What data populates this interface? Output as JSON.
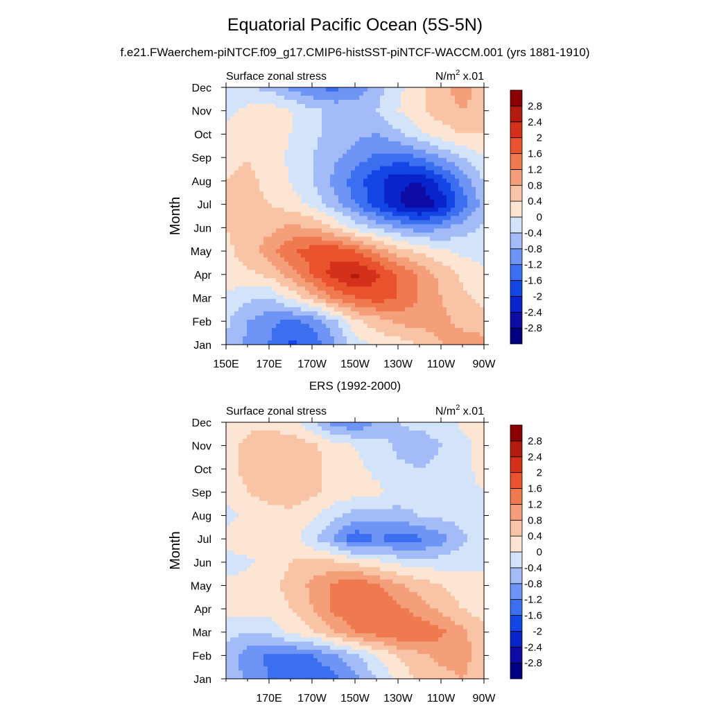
{
  "title": "Equatorial Pacific Ocean (5S-5N)",
  "subtitle": "f.e21.FWaerchem-piNTCF.f09_g17.CMIP6-histSST-piNTCF-WACCM.001 (yrs 1881-1910)",
  "colors": {
    "levels": [
      "#000080",
      "#0d0da6",
      "#0a24cc",
      "#1446e6",
      "#3c6ef0",
      "#6e95f5",
      "#a3bbf7",
      "#d3e3fa",
      "#fde5d3",
      "#f9c3a6",
      "#f59f7a",
      "#f07a50",
      "#e8522c",
      "#d5301a",
      "#b31c0d",
      "#8b0000"
    ]
  },
  "chart_data": [
    {
      "type": "heatmap",
      "name": "model",
      "panel_title": "",
      "left_label": "Surface zonal stress",
      "right_label_base": "N/m",
      "right_label_sup": "2",
      "right_label_suffix": " x.01",
      "ylabel": "Month",
      "xticks": [
        150,
        170,
        190,
        210,
        230,
        250,
        270
      ],
      "xticklabels": [
        "150E",
        "170E",
        "170W",
        "150W",
        "130W",
        "110W",
        "90W"
      ],
      "yticklabels": [
        "Jan",
        "Feb",
        "Mar",
        "Apr",
        "May",
        "Jun",
        "Jul",
        "Aug",
        "Sep",
        "Oct",
        "Nov",
        "Dec"
      ],
      "xlim": [
        150,
        270
      ],
      "ylim": [
        0,
        11
      ],
      "levels": [
        -2.8,
        -2.4,
        -2,
        -1.6,
        -1.2,
        -0.8,
        -0.4,
        0,
        0.4,
        0.8,
        1.2,
        1.6,
        2,
        2.4,
        2.8
      ],
      "x": [
        150,
        160,
        170,
        180,
        190,
        200,
        210,
        220,
        230,
        240,
        250,
        260,
        270
      ],
      "months": [
        "Jan",
        "Feb",
        "Mar",
        "Apr",
        "May",
        "Jun",
        "Jul",
        "Aug",
        "Sep",
        "Oct",
        "Nov",
        "Dec"
      ],
      "values": [
        [
          -0.5,
          -0.9,
          -1.2,
          -1.7,
          -1.5,
          -0.9,
          -0.2,
          0.1,
          0.2,
          0.4,
          0.8,
          1.0,
          1.0
        ],
        [
          -0.3,
          -0.8,
          -1.1,
          -1.3,
          -1.1,
          -0.5,
          0.3,
          0.6,
          0.9,
          1.0,
          0.9,
          0.7,
          0.5
        ],
        [
          -0.1,
          -0.3,
          -0.4,
          0.1,
          0.6,
          1.2,
          1.6,
          1.8,
          1.6,
          1.2,
          0.8,
          0.5,
          0.3
        ],
        [
          0.3,
          0.3,
          0.5,
          1.0,
          1.6,
          2.2,
          2.5,
          2.1,
          1.6,
          1.1,
          0.7,
          0.3,
          0.1
        ],
        [
          0.3,
          0.6,
          1.0,
          1.5,
          1.8,
          1.9,
          1.6,
          1.1,
          0.6,
          0.3,
          0.1,
          -0.1,
          -0.2
        ],
        [
          0.4,
          0.6,
          0.7,
          0.9,
          0.8,
          0.4,
          -0.1,
          -0.5,
          -0.8,
          -1.0,
          -0.9,
          -0.6,
          -0.3
        ],
        [
          0.4,
          0.5,
          0.4,
          0.2,
          -0.1,
          -0.6,
          -1.2,
          -1.8,
          -2.4,
          -2.8,
          -2.3,
          -1.4,
          -0.6
        ],
        [
          0.4,
          0.5,
          0.3,
          0.0,
          -0.4,
          -0.9,
          -1.4,
          -1.9,
          -2.3,
          -2.4,
          -1.8,
          -1.1,
          -0.4
        ],
        [
          0.3,
          0.4,
          0.2,
          -0.1,
          -0.4,
          -0.7,
          -1.0,
          -1.3,
          -1.4,
          -1.2,
          -0.8,
          -0.4,
          0.0
        ],
        [
          0.1,
          0.3,
          0.3,
          0.0,
          -0.3,
          -0.5,
          -0.7,
          -0.8,
          -0.5,
          -0.1,
          0.2,
          0.4,
          0.4
        ],
        [
          -0.1,
          0.1,
          0.2,
          0.0,
          -0.3,
          -0.5,
          -0.6,
          -0.4,
          0.0,
          0.3,
          0.6,
          0.8,
          0.6
        ],
        [
          -0.4,
          -0.4,
          -0.5,
          -0.9,
          -1.2,
          -1.3,
          -1.1,
          -0.6,
          -0.1,
          0.3,
          0.7,
          1.0,
          0.6
        ]
      ]
    },
    {
      "type": "heatmap",
      "name": "obs",
      "panel_title": "ERS (1992-2000)",
      "left_label": "Surface zonal stress",
      "right_label_base": "N/m",
      "right_label_sup": "2",
      "right_label_suffix": " x.01",
      "ylabel": "Month",
      "xticks": [
        170,
        190,
        210,
        230,
        250,
        270
      ],
      "xticklabels": [
        "170E",
        "170W",
        "150W",
        "130W",
        "110W",
        "90W"
      ],
      "yticklabels": [
        "Jan",
        "Feb",
        "Mar",
        "Apr",
        "May",
        "Jun",
        "Jul",
        "Aug",
        "Sep",
        "Oct",
        "Nov",
        "Dec"
      ],
      "xlim": [
        150,
        270
      ],
      "ylim": [
        0,
        11
      ],
      "levels": [
        -2.8,
        -2.4,
        -2,
        -1.6,
        -1.2,
        -0.8,
        -0.4,
        0,
        0.4,
        0.8,
        1.2,
        1.6,
        2,
        2.4,
        2.8
      ],
      "x": [
        150,
        160,
        170,
        180,
        190,
        200,
        210,
        220,
        230,
        240,
        250,
        260,
        270
      ],
      "months": [
        "Jan",
        "Feb",
        "Mar",
        "Apr",
        "May",
        "Jun",
        "Jul",
        "Aug",
        "Sep",
        "Oct",
        "Nov",
        "Dec"
      ],
      "values": [
        [
          -0.5,
          -0.9,
          -1.2,
          -1.4,
          -1.6,
          -1.3,
          -0.9,
          -0.4,
          0.1,
          0.5,
          0.7,
          0.8,
          0.6
        ],
        [
          -0.6,
          -1.0,
          -1.3,
          -1.3,
          -1.2,
          -0.9,
          -0.5,
          0.0,
          0.4,
          0.7,
          0.9,
          0.9,
          0.7
        ],
        [
          -0.2,
          -0.4,
          -0.3,
          0.1,
          0.3,
          0.8,
          1.2,
          1.4,
          1.6,
          1.6,
          1.3,
          0.9,
          0.5
        ],
        [
          0.1,
          0.2,
          0.2,
          0.4,
          0.8,
          1.3,
          1.6,
          1.5,
          1.3,
          1.0,
          0.7,
          0.4,
          0.2
        ],
        [
          0.1,
          0.2,
          0.3,
          0.5,
          0.9,
          1.3,
          1.5,
          1.3,
          0.9,
          0.6,
          0.4,
          0.2,
          0.0
        ],
        [
          -0.2,
          -0.1,
          0.2,
          0.4,
          0.5,
          0.5,
          0.3,
          0.1,
          -0.1,
          -0.2,
          -0.2,
          -0.1,
          0.0
        ],
        [
          0.2,
          0.3,
          0.3,
          0.2,
          -0.3,
          -0.8,
          -1.5,
          -1.2,
          -1.4,
          -1.3,
          -1.0,
          -0.5,
          -0.2
        ],
        [
          -0.2,
          0.2,
          0.3,
          0.3,
          0.1,
          -0.3,
          -0.6,
          -0.6,
          -0.6,
          -0.4,
          -0.3,
          -0.2,
          -0.1
        ],
        [
          0.2,
          0.4,
          0.5,
          0.6,
          0.5,
          0.3,
          0.2,
          0.1,
          -0.1,
          -0.2,
          -0.2,
          -0.1,
          0.0
        ],
        [
          0.3,
          0.5,
          0.6,
          0.6,
          0.5,
          0.3,
          0.1,
          -0.1,
          -0.3,
          -0.4,
          -0.3,
          -0.1,
          0.1
        ],
        [
          0.3,
          0.5,
          0.6,
          0.7,
          0.5,
          0.2,
          0.0,
          -0.2,
          -0.5,
          -0.6,
          -0.4,
          -0.2,
          0.2
        ],
        [
          0.1,
          0.3,
          0.3,
          0.1,
          -0.3,
          -1.0,
          -1.2,
          -0.8,
          -0.4,
          -0.3,
          -0.2,
          0.1,
          0.3
        ]
      ]
    }
  ]
}
